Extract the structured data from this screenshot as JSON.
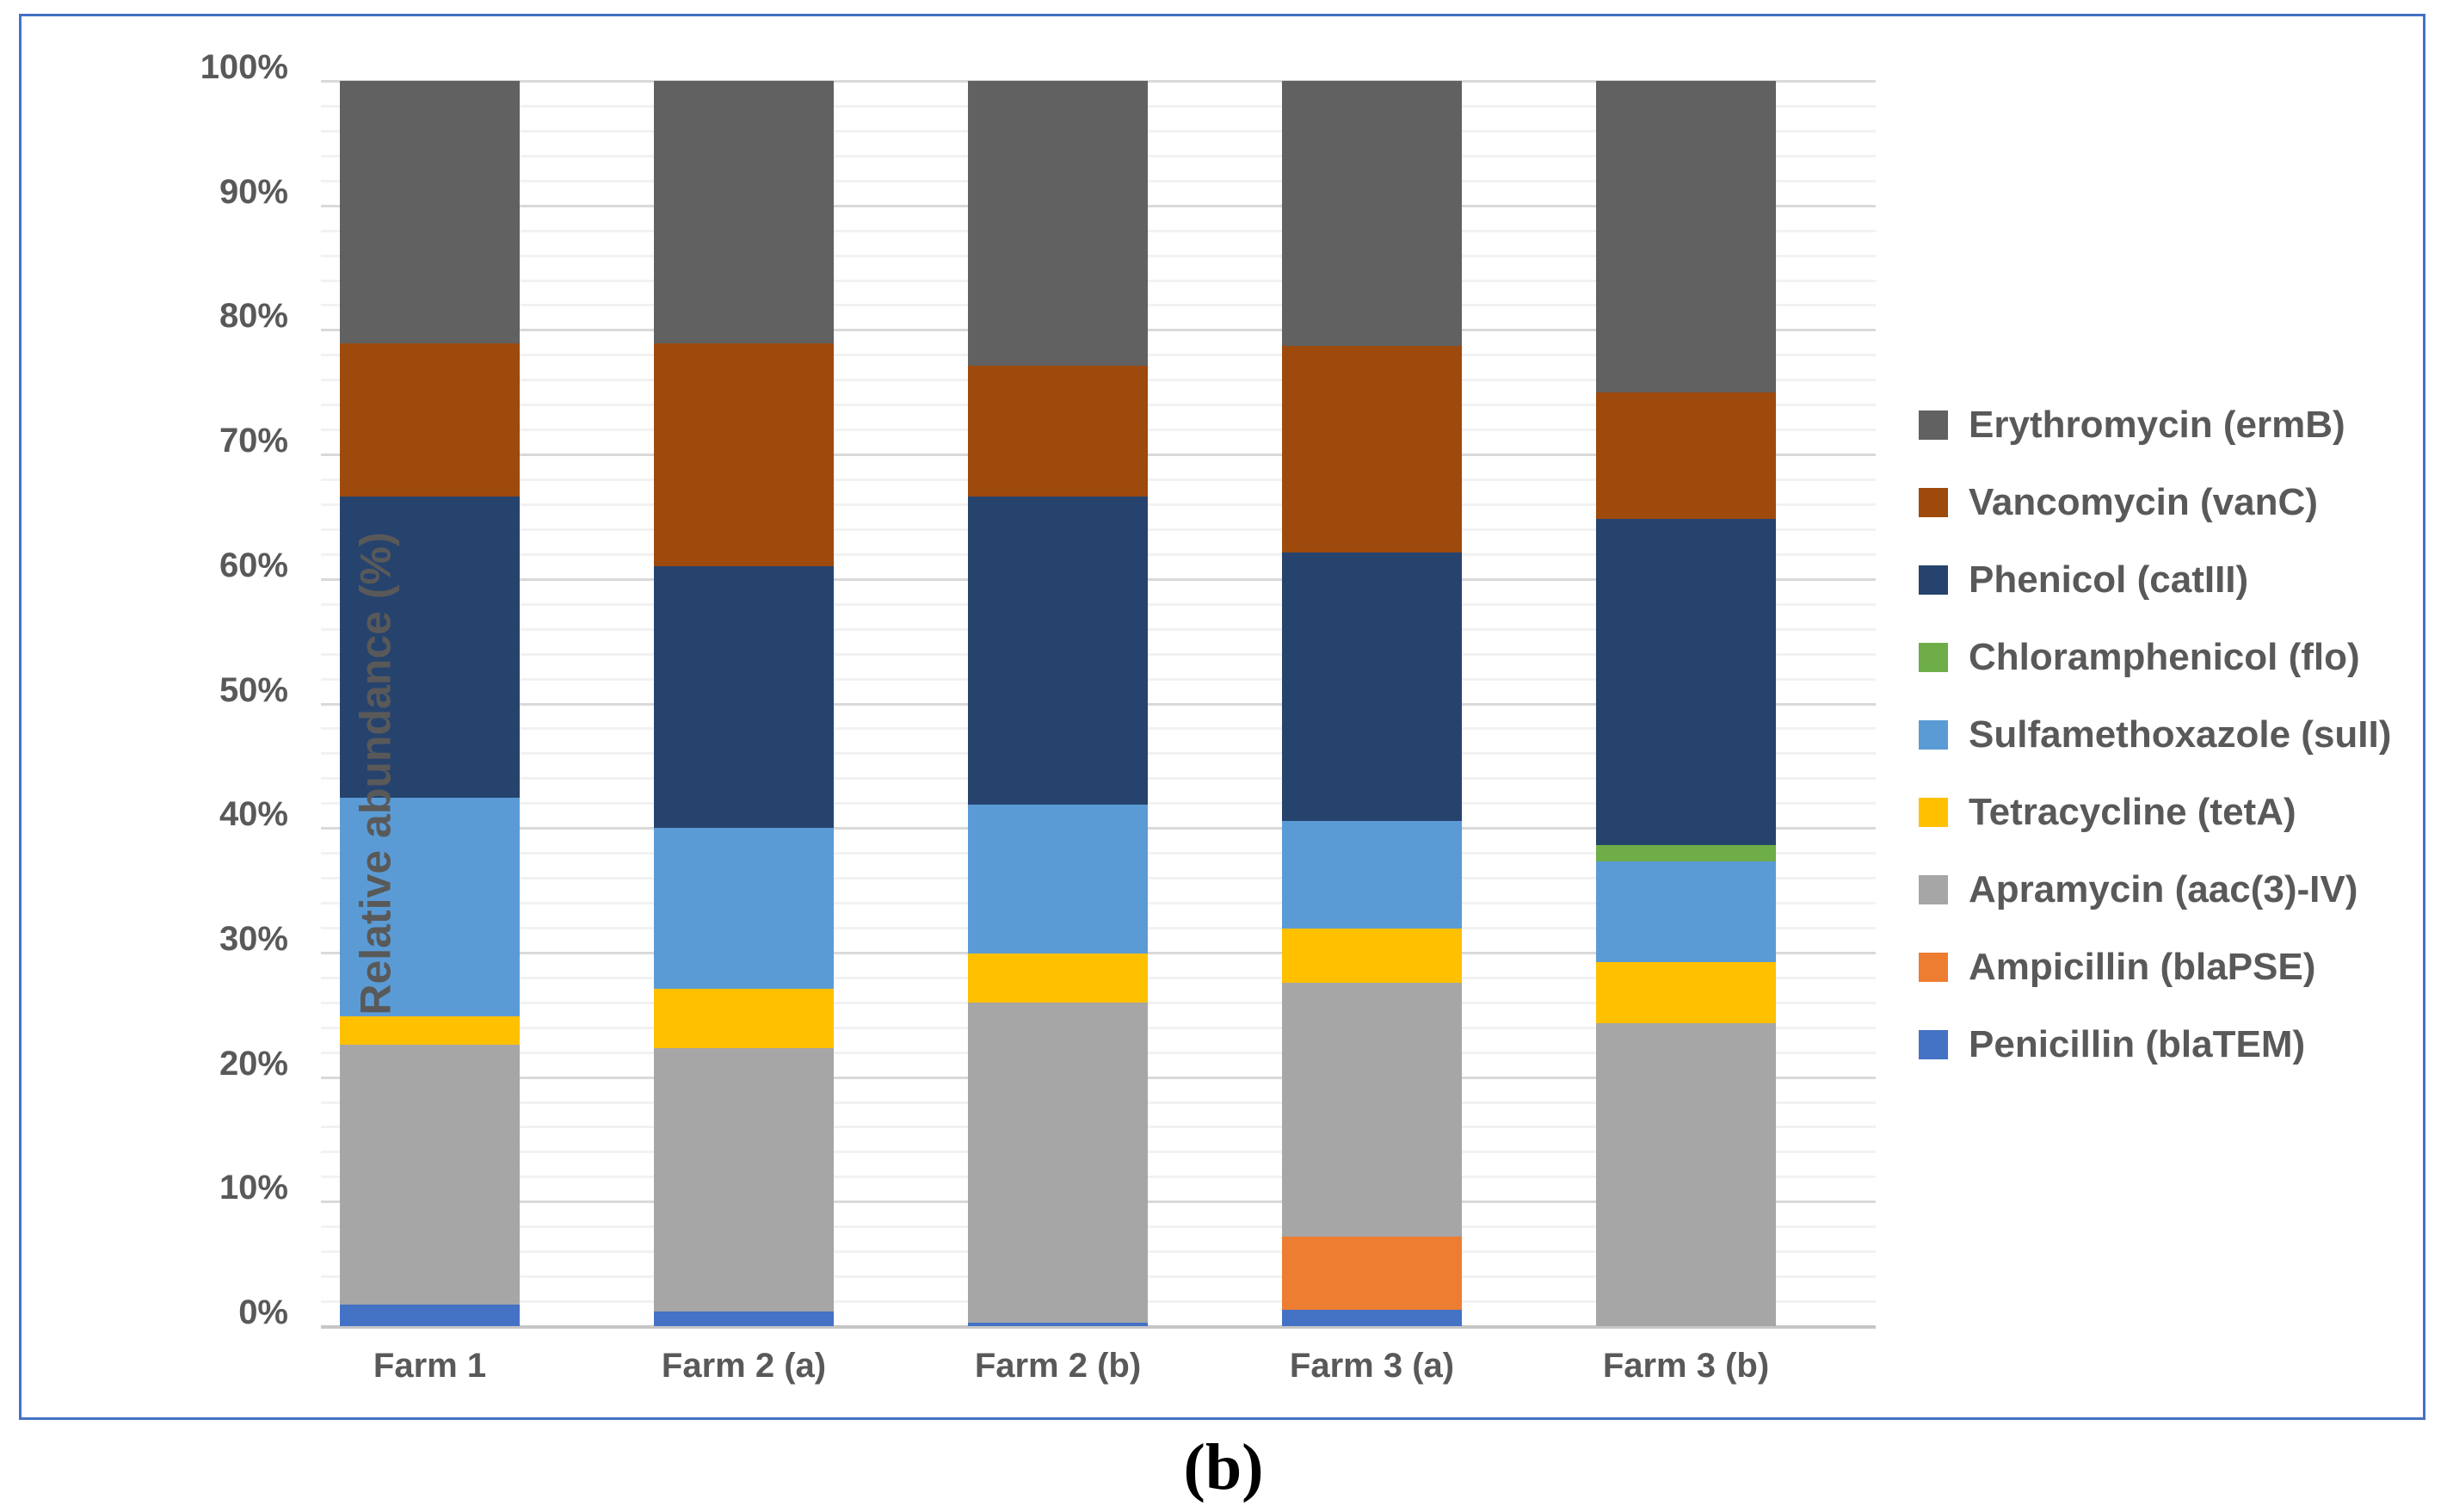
{
  "figure": {
    "caption": "(b)",
    "border_color": "#4472C4"
  },
  "chart_data": {
    "type": "bar",
    "stacked": true,
    "title": "",
    "xlabel": "",
    "ylabel": "Relative abundance (%)",
    "ylim": [
      0,
      100
    ],
    "y_tick_step": 10,
    "y_minor_step": 2,
    "y_tick_suffix": "%",
    "grid": "major-and-minor-horizontal",
    "legend_position": "right",
    "legend_order": "top-is-last-series",
    "categories": [
      "Farm 1",
      "Farm 2 (a)",
      "Farm 2 (b)",
      "Farm 3 (a)",
      "Farm 3 (b)"
    ],
    "series": [
      {
        "name": "Penicillin (blaTEM)",
        "color": "#4472C4",
        "values": [
          1.7,
          1.2,
          0.3,
          1.3,
          0
        ]
      },
      {
        "name": "Ampicillin (blaPSE)",
        "color": "#ED7D31",
        "values": [
          0,
          0,
          0,
          5.9,
          0
        ]
      },
      {
        "name": "Apramycin (aac(3)-IV)",
        "color": "#A6A6A6",
        "values": [
          20.9,
          21.1,
          25.7,
          20.4,
          24.3
        ]
      },
      {
        "name": "Tetracycline (tetA)",
        "color": "#FFC000",
        "values": [
          2.3,
          4.8,
          3.9,
          4.3,
          4.9
        ]
      },
      {
        "name": "Sulfamethoxazole (suII)",
        "color": "#5B9BD5",
        "values": [
          17.5,
          12.9,
          12.0,
          8.7,
          8.1
        ]
      },
      {
        "name": "Chloramphenicol (flo)",
        "color": "#6EAD47",
        "values": [
          0,
          0,
          0,
          0,
          1.3
        ]
      },
      {
        "name": "Phenicol (catIII)",
        "color": "#26436E",
        "values": [
          24.2,
          21.0,
          24.7,
          21.5,
          26.2
        ]
      },
      {
        "name": "Vancomycin (vanC)",
        "color": "#9E4A0D",
        "values": [
          12.3,
          17.9,
          10.5,
          16.6,
          10.2
        ]
      },
      {
        "name": "Erythromycin (ermB)",
        "color": "#616161",
        "values": [
          21.1,
          21.1,
          22.9,
          21.3,
          25.0
        ]
      }
    ]
  }
}
